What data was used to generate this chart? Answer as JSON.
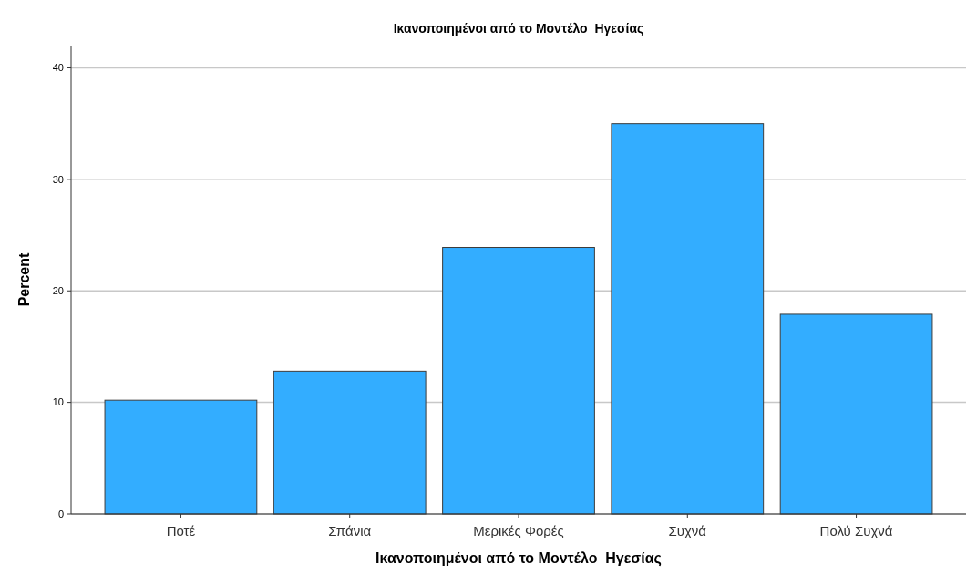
{
  "chart_data": {
    "type": "bar",
    "title": "Ικανοποιημένοι από το Μοντέλο  Ηγεσίας",
    "xlabel": "Ικανοποιημένοι από το Μοντέλο  Ηγεσίας",
    "ylabel": "Percent",
    "categories": [
      "Ποτέ",
      "Σπάνια",
      "Μερικές Φορές",
      "Συχνά",
      "Πολύ Συχνά"
    ],
    "values": [
      10.2,
      12.8,
      23.9,
      35.0,
      17.9
    ],
    "color": "#33adff",
    "ylim": [
      0,
      42
    ],
    "yticks": [
      0,
      10,
      20,
      30,
      40
    ],
    "grid": "y"
  }
}
